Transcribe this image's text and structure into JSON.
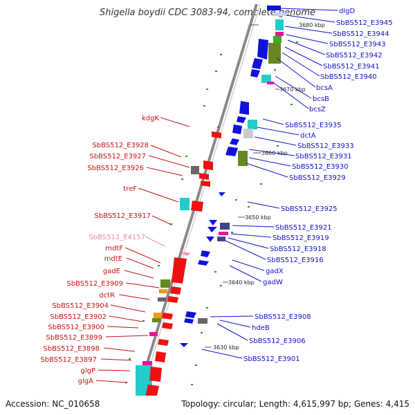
{
  "title": "Shigella boydii CDC 3083-94, complete genome",
  "footer": {
    "accession": "Accession: NC_010658",
    "summary": "Topology: circular; Length: 4,615,997 bp; Genes: 4,415"
  },
  "colors": {
    "left_label": "#cc1111",
    "right_label": "#1111cc",
    "pink_label": "#ee88aa",
    "backbone": "#888888"
  },
  "ticks": [
    "3680 kbp",
    "3670 kbp",
    "3660 kbp",
    "3650 kbp",
    "3640 kbp",
    "3630 kbp"
  ],
  "left_labels": [
    "kdgK",
    "SbBS512_E3928",
    "SbBS512_E3927",
    "SbBS512_E3926",
    "treF",
    "SbBS512_E3917",
    "SbBS512_E4157",
    "mdtF",
    "mdtE",
    "gadE",
    "SbBS512_E3909",
    "dctR",
    "SbBS512_E3904",
    "SbBS512_E3902",
    "SbBS512_E3900",
    "SbBS512_E3899",
    "SbBS512_E3898",
    "SbBS512_E3897",
    "glgP",
    "glgA"
  ],
  "right_labels": [
    "dlgD",
    "SbBS512_E3945",
    "SbBS512_E3944",
    "SbBS512_E3943",
    "SbBS512_E3942",
    "SbBS512_E3941",
    "SbBS512_E3940",
    "bcsA",
    "bcsB",
    "bcsZ",
    "SbBS512_E3935",
    "dctA",
    "SbBS512_E3933",
    "SbBS512_E3931",
    "SbBS512_E3930",
    "SbBS512_E3929",
    "SbBS512_E3925",
    "SbBS512_E3921",
    "SbBS512_E3919",
    "SbBS512_E3918",
    "SbBS512_E3916",
    "gadX",
    "gadW",
    "SbBS512_E3908",
    "hdeB",
    "SbBS512_E3906",
    "SbBS512_E3901"
  ]
}
